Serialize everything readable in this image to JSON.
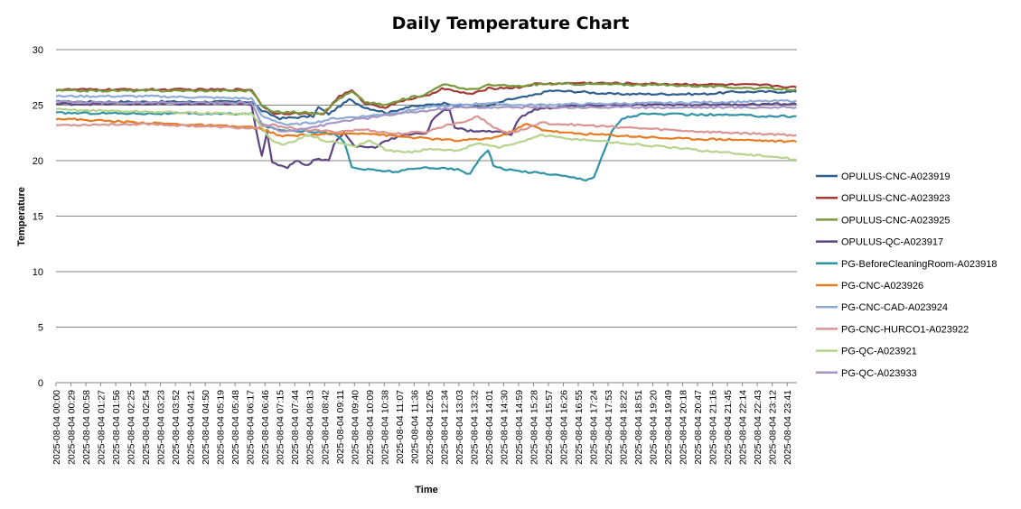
{
  "chart_data": {
    "type": "line",
    "title": "Daily Temperature Chart",
    "xlabel": "Time",
    "ylabel": "Temperature",
    "ylim": [
      0,
      30
    ],
    "yticks": [
      0,
      5,
      10,
      15,
      20,
      25,
      30
    ],
    "grid": "horizontal",
    "legend_position": "right",
    "x_tick_labels": [
      "2025-08-04 00:00",
      "2025-08-04 00:29",
      "2025-08-04 00:58",
      "2025-08-04 01:27",
      "2025-08-04 01:56",
      "2025-08-04 02:25",
      "2025-08-04 02:54",
      "2025-08-04 03:23",
      "2025-08-04 03:52",
      "2025-08-04 04:21",
      "2025-08-04 04:50",
      "2025-08-04 05:19",
      "2025-08-04 05:48",
      "2025-08-04 06:17",
      "2025-08-04 06:46",
      "2025-08-04 07:15",
      "2025-08-04 07:44",
      "2025-08-04 08:13",
      "2025-08-04 08:42",
      "2025-08-04 09:11",
      "2025-08-04 09:40",
      "2025-08-04 10:09",
      "2025-08-04 10:38",
      "2025-08-04 11:07",
      "2025-08-04 11:36",
      "2025-08-04 12:05",
      "2025-08-04 12:34",
      "2025-08-04 13:03",
      "2025-08-04 13:32",
      "2025-08-04 14:01",
      "2025-08-04 14:30",
      "2025-08-04 14:59",
      "2025-08-04 15:28",
      "2025-08-04 15:57",
      "2025-08-04 16:26",
      "2025-08-04 16:55",
      "2025-08-04 17:24",
      "2025-08-04 17:53",
      "2025-08-04 18:22",
      "2025-08-04 18:51",
      "2025-08-04 19:20",
      "2025-08-04 19:49",
      "2025-08-04 20:18",
      "2025-08-04 20:47",
      "2025-08-04 21:16",
      "2025-08-04 21:45",
      "2025-08-04 22:14",
      "2025-08-04 22:43",
      "2025-08-04 23:12",
      "2025-08-04 23:41"
    ],
    "series": [
      {
        "name": "OPULUS-CNC-A023919",
        "color": "#2E5F8E",
        "points": [
          [
            "2025-08-04 00:00",
            25.3
          ],
          [
            "2025-08-04 06:20",
            25.3
          ],
          [
            "2025-08-04 06:40",
            24.5
          ],
          [
            "2025-08-04 07:15",
            23.8
          ],
          [
            "2025-08-04 08:20",
            24.0
          ],
          [
            "2025-08-04 08:30",
            24.8
          ],
          [
            "2025-08-04 08:50",
            24.2
          ],
          [
            "2025-08-04 09:30",
            25.5
          ],
          [
            "2025-08-04 10:00",
            24.8
          ],
          [
            "2025-08-04 10:45",
            24.3
          ],
          [
            "2025-08-04 11:20",
            24.8
          ],
          [
            "2025-08-04 12:00",
            25.0
          ],
          [
            "2025-08-04 12:40",
            25.2
          ],
          [
            "2025-08-04 13:10",
            24.8
          ],
          [
            "2025-08-04 14:00",
            24.9
          ],
          [
            "2025-08-04 14:40",
            25.5
          ],
          [
            "2025-08-04 15:20",
            25.8
          ],
          [
            "2025-08-04 16:00",
            26.3
          ],
          [
            "2025-08-04 17:00",
            26.2
          ],
          [
            "2025-08-04 18:00",
            26.0
          ],
          [
            "2025-08-04 21:00",
            26.0
          ],
          [
            "2025-08-04 22:00",
            26.2
          ],
          [
            "2025-08-04 23:59",
            26.2
          ]
        ]
      },
      {
        "name": "OPULUS-CNC-A023923",
        "color": "#A33A36",
        "points": [
          [
            "2025-08-04 00:00",
            26.4
          ],
          [
            "2025-08-04 06:20",
            26.4
          ],
          [
            "2025-08-04 06:40",
            25.0
          ],
          [
            "2025-08-04 07:00",
            24.3
          ],
          [
            "2025-08-04 08:40",
            24.2
          ],
          [
            "2025-08-04 09:10",
            25.8
          ],
          [
            "2025-08-04 09:35",
            26.3
          ],
          [
            "2025-08-04 10:00",
            25.2
          ],
          [
            "2025-08-04 10:40",
            24.8
          ],
          [
            "2025-08-04 11:20",
            25.5
          ],
          [
            "2025-08-04 12:00",
            25.8
          ],
          [
            "2025-08-04 12:30",
            26.5
          ],
          [
            "2025-08-04 13:00",
            26.2
          ],
          [
            "2025-08-04 13:30",
            26.0
          ],
          [
            "2025-08-04 14:00",
            26.5
          ],
          [
            "2025-08-04 15:00",
            26.6
          ],
          [
            "2025-08-04 15:30",
            26.9
          ],
          [
            "2025-08-04 17:00",
            27.0
          ],
          [
            "2025-08-04 20:00",
            26.9
          ],
          [
            "2025-08-04 23:00",
            26.8
          ],
          [
            "2025-08-04 23:59",
            26.6
          ]
        ]
      },
      {
        "name": "OPULUS-CNC-A023925",
        "color": "#77993D",
        "points": [
          [
            "2025-08-04 00:00",
            26.3
          ],
          [
            "2025-08-04 06:20",
            26.3
          ],
          [
            "2025-08-04 06:40",
            25.0
          ],
          [
            "2025-08-04 07:00",
            24.4
          ],
          [
            "2025-08-04 08:40",
            24.3
          ],
          [
            "2025-08-04 09:10",
            25.6
          ],
          [
            "2025-08-04 09:35",
            26.2
          ],
          [
            "2025-08-04 10:00",
            25.3
          ],
          [
            "2025-08-04 10:40",
            25.0
          ],
          [
            "2025-08-04 11:20",
            25.6
          ],
          [
            "2025-08-04 12:00",
            26.0
          ],
          [
            "2025-08-04 12:30",
            26.9
          ],
          [
            "2025-08-04 13:00",
            26.6
          ],
          [
            "2025-08-04 13:30",
            26.4
          ],
          [
            "2025-08-04 14:00",
            26.8
          ],
          [
            "2025-08-04 15:00",
            26.7
          ],
          [
            "2025-08-04 15:40",
            26.9
          ],
          [
            "2025-08-04 17:00",
            26.9
          ],
          [
            "2025-08-04 20:00",
            26.8
          ],
          [
            "2025-08-04 23:00",
            26.5
          ],
          [
            "2025-08-04 23:59",
            26.4
          ]
        ]
      },
      {
        "name": "OPULUS-QC-A023917",
        "color": "#5E4581",
        "points": [
          [
            "2025-08-04 00:00",
            25.1
          ],
          [
            "2025-08-04 06:20",
            25.1
          ],
          [
            "2025-08-04 06:30",
            22.5
          ],
          [
            "2025-08-04 06:40",
            20.5
          ],
          [
            "2025-08-04 06:50",
            22.5
          ],
          [
            "2025-08-04 07:00",
            19.8
          ],
          [
            "2025-08-04 07:30",
            19.4
          ],
          [
            "2025-08-04 07:45",
            20.0
          ],
          [
            "2025-08-04 08:10",
            19.6
          ],
          [
            "2025-08-04 08:25",
            20.2
          ],
          [
            "2025-08-04 08:50",
            20.0
          ],
          [
            "2025-08-04 09:00",
            21.5
          ],
          [
            "2025-08-04 09:20",
            22.5
          ],
          [
            "2025-08-04 09:40",
            21.3
          ],
          [
            "2025-08-04 10:20",
            21.2
          ],
          [
            "2025-08-04 10:40",
            21.8
          ],
          [
            "2025-08-04 11:10",
            22.2
          ],
          [
            "2025-08-04 11:40",
            22.5
          ],
          [
            "2025-08-04 12:00",
            22.4
          ],
          [
            "2025-08-04 12:10",
            23.5
          ],
          [
            "2025-08-04 12:30",
            24.5
          ],
          [
            "2025-08-04 12:45",
            24.6
          ],
          [
            "2025-08-04 12:55",
            23.0
          ],
          [
            "2025-08-04 13:20",
            22.7
          ],
          [
            "2025-08-04 14:20",
            22.6
          ],
          [
            "2025-08-04 14:45",
            22.4
          ],
          [
            "2025-08-04 15:00",
            23.8
          ],
          [
            "2025-08-04 15:30",
            24.6
          ],
          [
            "2025-08-04 16:30",
            24.9
          ],
          [
            "2025-08-04 18:00",
            25.0
          ],
          [
            "2025-08-04 23:59",
            25.1
          ]
        ]
      },
      {
        "name": "PG-BeforeCleaningRoom-A023918",
        "color": "#2F93A5",
        "points": [
          [
            "2025-08-04 00:00",
            24.3
          ],
          [
            "2025-08-04 06:20",
            24.2
          ],
          [
            "2025-08-04 06:40",
            23.2
          ],
          [
            "2025-08-04 07:10",
            22.8
          ],
          [
            "2025-08-04 08:30",
            22.6
          ],
          [
            "2025-08-04 09:00",
            22.4
          ],
          [
            "2025-08-04 09:20",
            21.7
          ],
          [
            "2025-08-04 09:35",
            19.4
          ],
          [
            "2025-08-04 10:00",
            19.2
          ],
          [
            "2025-08-04 11:00",
            19.0
          ],
          [
            "2025-08-04 12:00",
            19.4
          ],
          [
            "2025-08-04 13:00",
            19.2
          ],
          [
            "2025-08-04 13:25",
            18.8
          ],
          [
            "2025-08-04 13:45",
            20.3
          ],
          [
            "2025-08-04 14:00",
            21.0
          ],
          [
            "2025-08-04 14:10",
            19.6
          ],
          [
            "2025-08-04 14:30",
            19.2
          ],
          [
            "2025-08-04 16:00",
            18.8
          ],
          [
            "2025-08-04 17:10",
            18.3
          ],
          [
            "2025-08-04 17:25",
            18.5
          ],
          [
            "2025-08-04 17:40",
            20.2
          ],
          [
            "2025-08-04 18:00",
            22.6
          ],
          [
            "2025-08-04 18:20",
            23.8
          ],
          [
            "2025-08-04 19:00",
            24.2
          ],
          [
            "2025-08-04 22:00",
            24.1
          ],
          [
            "2025-08-04 23:00",
            24.0
          ],
          [
            "2025-08-04 23:59",
            24.0
          ]
        ]
      },
      {
        "name": "PG-CNC-A023926",
        "color": "#E57C23",
        "points": [
          [
            "2025-08-04 00:00",
            23.8
          ],
          [
            "2025-08-04 03:00",
            23.4
          ],
          [
            "2025-08-04 06:20",
            23.0
          ],
          [
            "2025-08-04 06:50",
            22.7
          ],
          [
            "2025-08-04 07:15",
            22.2
          ],
          [
            "2025-08-04 08:00",
            22.3
          ],
          [
            "2025-08-04 09:00",
            22.4
          ],
          [
            "2025-08-04 10:00",
            22.5
          ],
          [
            "2025-08-04 11:00",
            22.2
          ],
          [
            "2025-08-04 12:00",
            22.0
          ],
          [
            "2025-08-04 13:00",
            21.8
          ],
          [
            "2025-08-04 14:00",
            22.0
          ],
          [
            "2025-08-04 14:30",
            22.3
          ],
          [
            "2025-08-04 15:15",
            23.3
          ],
          [
            "2025-08-04 15:45",
            22.8
          ],
          [
            "2025-08-04 16:30",
            22.5
          ],
          [
            "2025-08-04 18:00",
            22.3
          ],
          [
            "2025-08-04 20:00",
            22.0
          ],
          [
            "2025-08-04 22:00",
            21.9
          ],
          [
            "2025-08-04 23:59",
            21.7
          ]
        ]
      },
      {
        "name": "PG-CNC-CAD-A023924",
        "color": "#8FAAD6",
        "points": [
          [
            "2025-08-04 00:00",
            25.8
          ],
          [
            "2025-08-04 03:00",
            25.8
          ],
          [
            "2025-08-04 06:20",
            25.6
          ],
          [
            "2025-08-04 06:40",
            24.0
          ],
          [
            "2025-08-04 07:30",
            23.2
          ],
          [
            "2025-08-04 08:30",
            23.5
          ],
          [
            "2025-08-04 09:00",
            23.8
          ],
          [
            "2025-08-04 10:00",
            24.0
          ],
          [
            "2025-08-04 11:00",
            24.3
          ],
          [
            "2025-08-04 12:00",
            24.8
          ],
          [
            "2025-08-04 13:00",
            25.0
          ],
          [
            "2025-08-04 14:00",
            25.2
          ],
          [
            "2025-08-04 15:00",
            25.0
          ],
          [
            "2025-08-04 17:00",
            25.1
          ],
          [
            "2025-08-04 20:00",
            25.2
          ],
          [
            "2025-08-04 23:59",
            25.4
          ]
        ]
      },
      {
        "name": "PG-CNC-HURCO1-A023922",
        "color": "#D99594",
        "points": [
          [
            "2025-08-04 00:00",
            23.2
          ],
          [
            "2025-08-04 03:00",
            23.3
          ],
          [
            "2025-08-04 06:20",
            22.9
          ],
          [
            "2025-08-04 07:00",
            23.2
          ],
          [
            "2025-08-04 08:00",
            22.8
          ],
          [
            "2025-08-04 09:00",
            22.6
          ],
          [
            "2025-08-04 10:00",
            22.8
          ],
          [
            "2025-08-04 11:00",
            22.4
          ],
          [
            "2025-08-04 12:00",
            22.6
          ],
          [
            "2025-08-04 12:40",
            23.2
          ],
          [
            "2025-08-04 13:10",
            23.5
          ],
          [
            "2025-08-04 13:40",
            24.0
          ],
          [
            "2025-08-04 14:10",
            23.0
          ],
          [
            "2025-08-04 14:40",
            22.5
          ],
          [
            "2025-08-04 15:10",
            22.8
          ],
          [
            "2025-08-04 15:40",
            23.4
          ],
          [
            "2025-08-04 17:00",
            23.2
          ],
          [
            "2025-08-04 19:00",
            22.9
          ],
          [
            "2025-08-04 21:00",
            22.6
          ],
          [
            "2025-08-04 23:59",
            22.3
          ]
        ]
      },
      {
        "name": "PG-QC-A023921",
        "color": "#B6D38E",
        "points": [
          [
            "2025-08-04 00:00",
            24.6
          ],
          [
            "2025-08-04 03:00",
            24.4
          ],
          [
            "2025-08-04 06:20",
            24.2
          ],
          [
            "2025-08-04 06:40",
            23.0
          ],
          [
            "2025-08-04 07:00",
            21.8
          ],
          [
            "2025-08-04 07:20",
            21.4
          ],
          [
            "2025-08-04 07:45",
            21.8
          ],
          [
            "2025-08-04 08:10",
            22.4
          ],
          [
            "2025-08-04 08:40",
            21.8
          ],
          [
            "2025-08-04 09:10",
            21.6
          ],
          [
            "2025-08-04 09:40",
            21.3
          ],
          [
            "2025-08-04 10:10",
            21.8
          ],
          [
            "2025-08-04 10:40",
            21.0
          ],
          [
            "2025-08-04 11:20",
            20.7
          ],
          [
            "2025-08-04 12:00",
            21.0
          ],
          [
            "2025-08-04 13:00",
            20.9
          ],
          [
            "2025-08-04 13:40",
            21.6
          ],
          [
            "2025-08-04 14:20",
            21.2
          ],
          [
            "2025-08-04 15:00",
            21.6
          ],
          [
            "2025-08-04 15:40",
            22.3
          ],
          [
            "2025-08-04 16:30",
            22.0
          ],
          [
            "2025-08-04 17:30",
            21.8
          ],
          [
            "2025-08-04 19:00",
            21.4
          ],
          [
            "2025-08-04 21:00",
            20.9
          ],
          [
            "2025-08-04 23:00",
            20.4
          ],
          [
            "2025-08-04 23:59",
            20.1
          ]
        ]
      },
      {
        "name": "PG-QC-A023933",
        "color": "#A896C2",
        "points": [
          [
            "2025-08-04 00:00",
            25.3
          ],
          [
            "2025-08-04 03:00",
            25.2
          ],
          [
            "2025-08-04 06:20",
            25.2
          ],
          [
            "2025-08-04 06:40",
            23.3
          ],
          [
            "2025-08-04 07:20",
            22.6
          ],
          [
            "2025-08-04 08:00",
            22.9
          ],
          [
            "2025-08-04 08:40",
            23.2
          ],
          [
            "2025-08-04 09:20",
            23.6
          ],
          [
            "2025-08-04 10:00",
            23.8
          ],
          [
            "2025-08-04 11:00",
            24.2
          ],
          [
            "2025-08-04 12:00",
            24.5
          ],
          [
            "2025-08-04 13:00",
            24.8
          ],
          [
            "2025-08-04 14:00",
            24.8
          ],
          [
            "2025-08-04 16:00",
            24.8
          ],
          [
            "2025-08-04 18:00",
            24.8
          ],
          [
            "2025-08-04 21:00",
            24.8
          ],
          [
            "2025-08-04 23:59",
            24.8
          ]
        ]
      }
    ]
  }
}
